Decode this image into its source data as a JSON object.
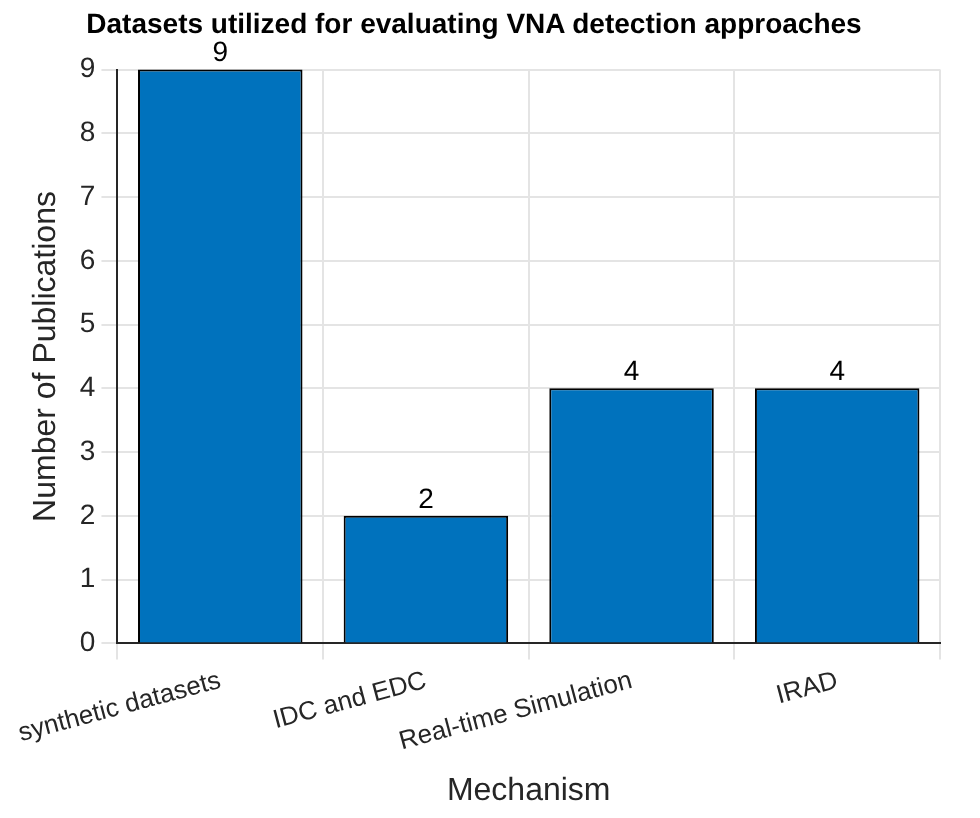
{
  "chart_data": {
    "type": "bar",
    "title": "Datasets utilized for evaluating VNA detection approaches",
    "xlabel": "Mechanism",
    "ylabel": "Number of Publications",
    "categories": [
      "synthetic datasets",
      "IDC and EDC",
      "Real-time Simulation",
      "IRAD"
    ],
    "values": [
      9,
      2,
      4,
      4
    ],
    "color": "#0072bd",
    "ylim": [
      0,
      9
    ],
    "yticks": [
      0,
      1,
      2,
      3,
      4,
      5,
      6,
      7,
      8,
      9
    ],
    "grid": true,
    "data_labels": true
  }
}
